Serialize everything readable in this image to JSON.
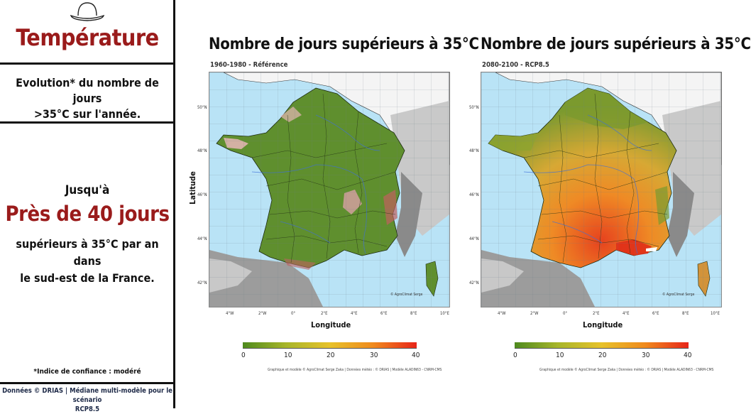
{
  "sidebar": {
    "title": "Température",
    "evolution_line1": "Evolution* du nombre de jours",
    "evolution_line2": ">35°C sur l'année.",
    "jusqua": "Jusqu'à",
    "highlight": "Près de 40 jours",
    "desc_line1": "supérieurs à 35°C par an dans",
    "desc_line2": "le sud-est de la France.",
    "confidence": "*Indice de confiance : modéré",
    "source_line1": "Données © DRIAS | Médiane multi-modèle pour le scénario",
    "source_line2": "RCP8.5",
    "hat_icon": "hat-icon"
  },
  "maps": [
    {
      "title": "Nombre de jours supérieurs à 35°C",
      "subtitle": "1960-1980 - Référence",
      "ylabel": "Latitude",
      "xlabel": "Longitude",
      "watermark": "© AgroClimat Serge",
      "credit": "Graphique et modèle © AgroClimat Serge Zaka | Données météo : © DRIAS | Modèle ALADIN63 - CNRM-CMS",
      "dominant_color": "#5f8f2e"
    },
    {
      "title": "Nombre de jours supérieurs à 35°C",
      "subtitle": "2080-2100 - RCP8.5",
      "ylabel": "",
      "xlabel": "Longitude",
      "watermark": "© AgroClimat Serge",
      "credit": "Graphique et modèle © AgroClimat Serge Zaka | Données météo : © DRIAS | Modèle ALADIN63 - CNRM-CMS",
      "dominant_color": "#d98c2e"
    }
  ],
  "axes": {
    "yticks": [
      "50°N",
      "48°N",
      "46°N",
      "44°N",
      "42°N"
    ],
    "xticks": [
      "4°W",
      "2°W",
      "0°",
      "2°E",
      "4°E",
      "6°E",
      "8°E",
      "10°E"
    ]
  },
  "colorbar": {
    "ticks": [
      "0",
      "10",
      "20",
      "30",
      "40"
    ],
    "colors": [
      "#4e8a1e",
      "#a8b62a",
      "#e7c22a",
      "#f08a1d",
      "#e8251a"
    ]
  }
}
